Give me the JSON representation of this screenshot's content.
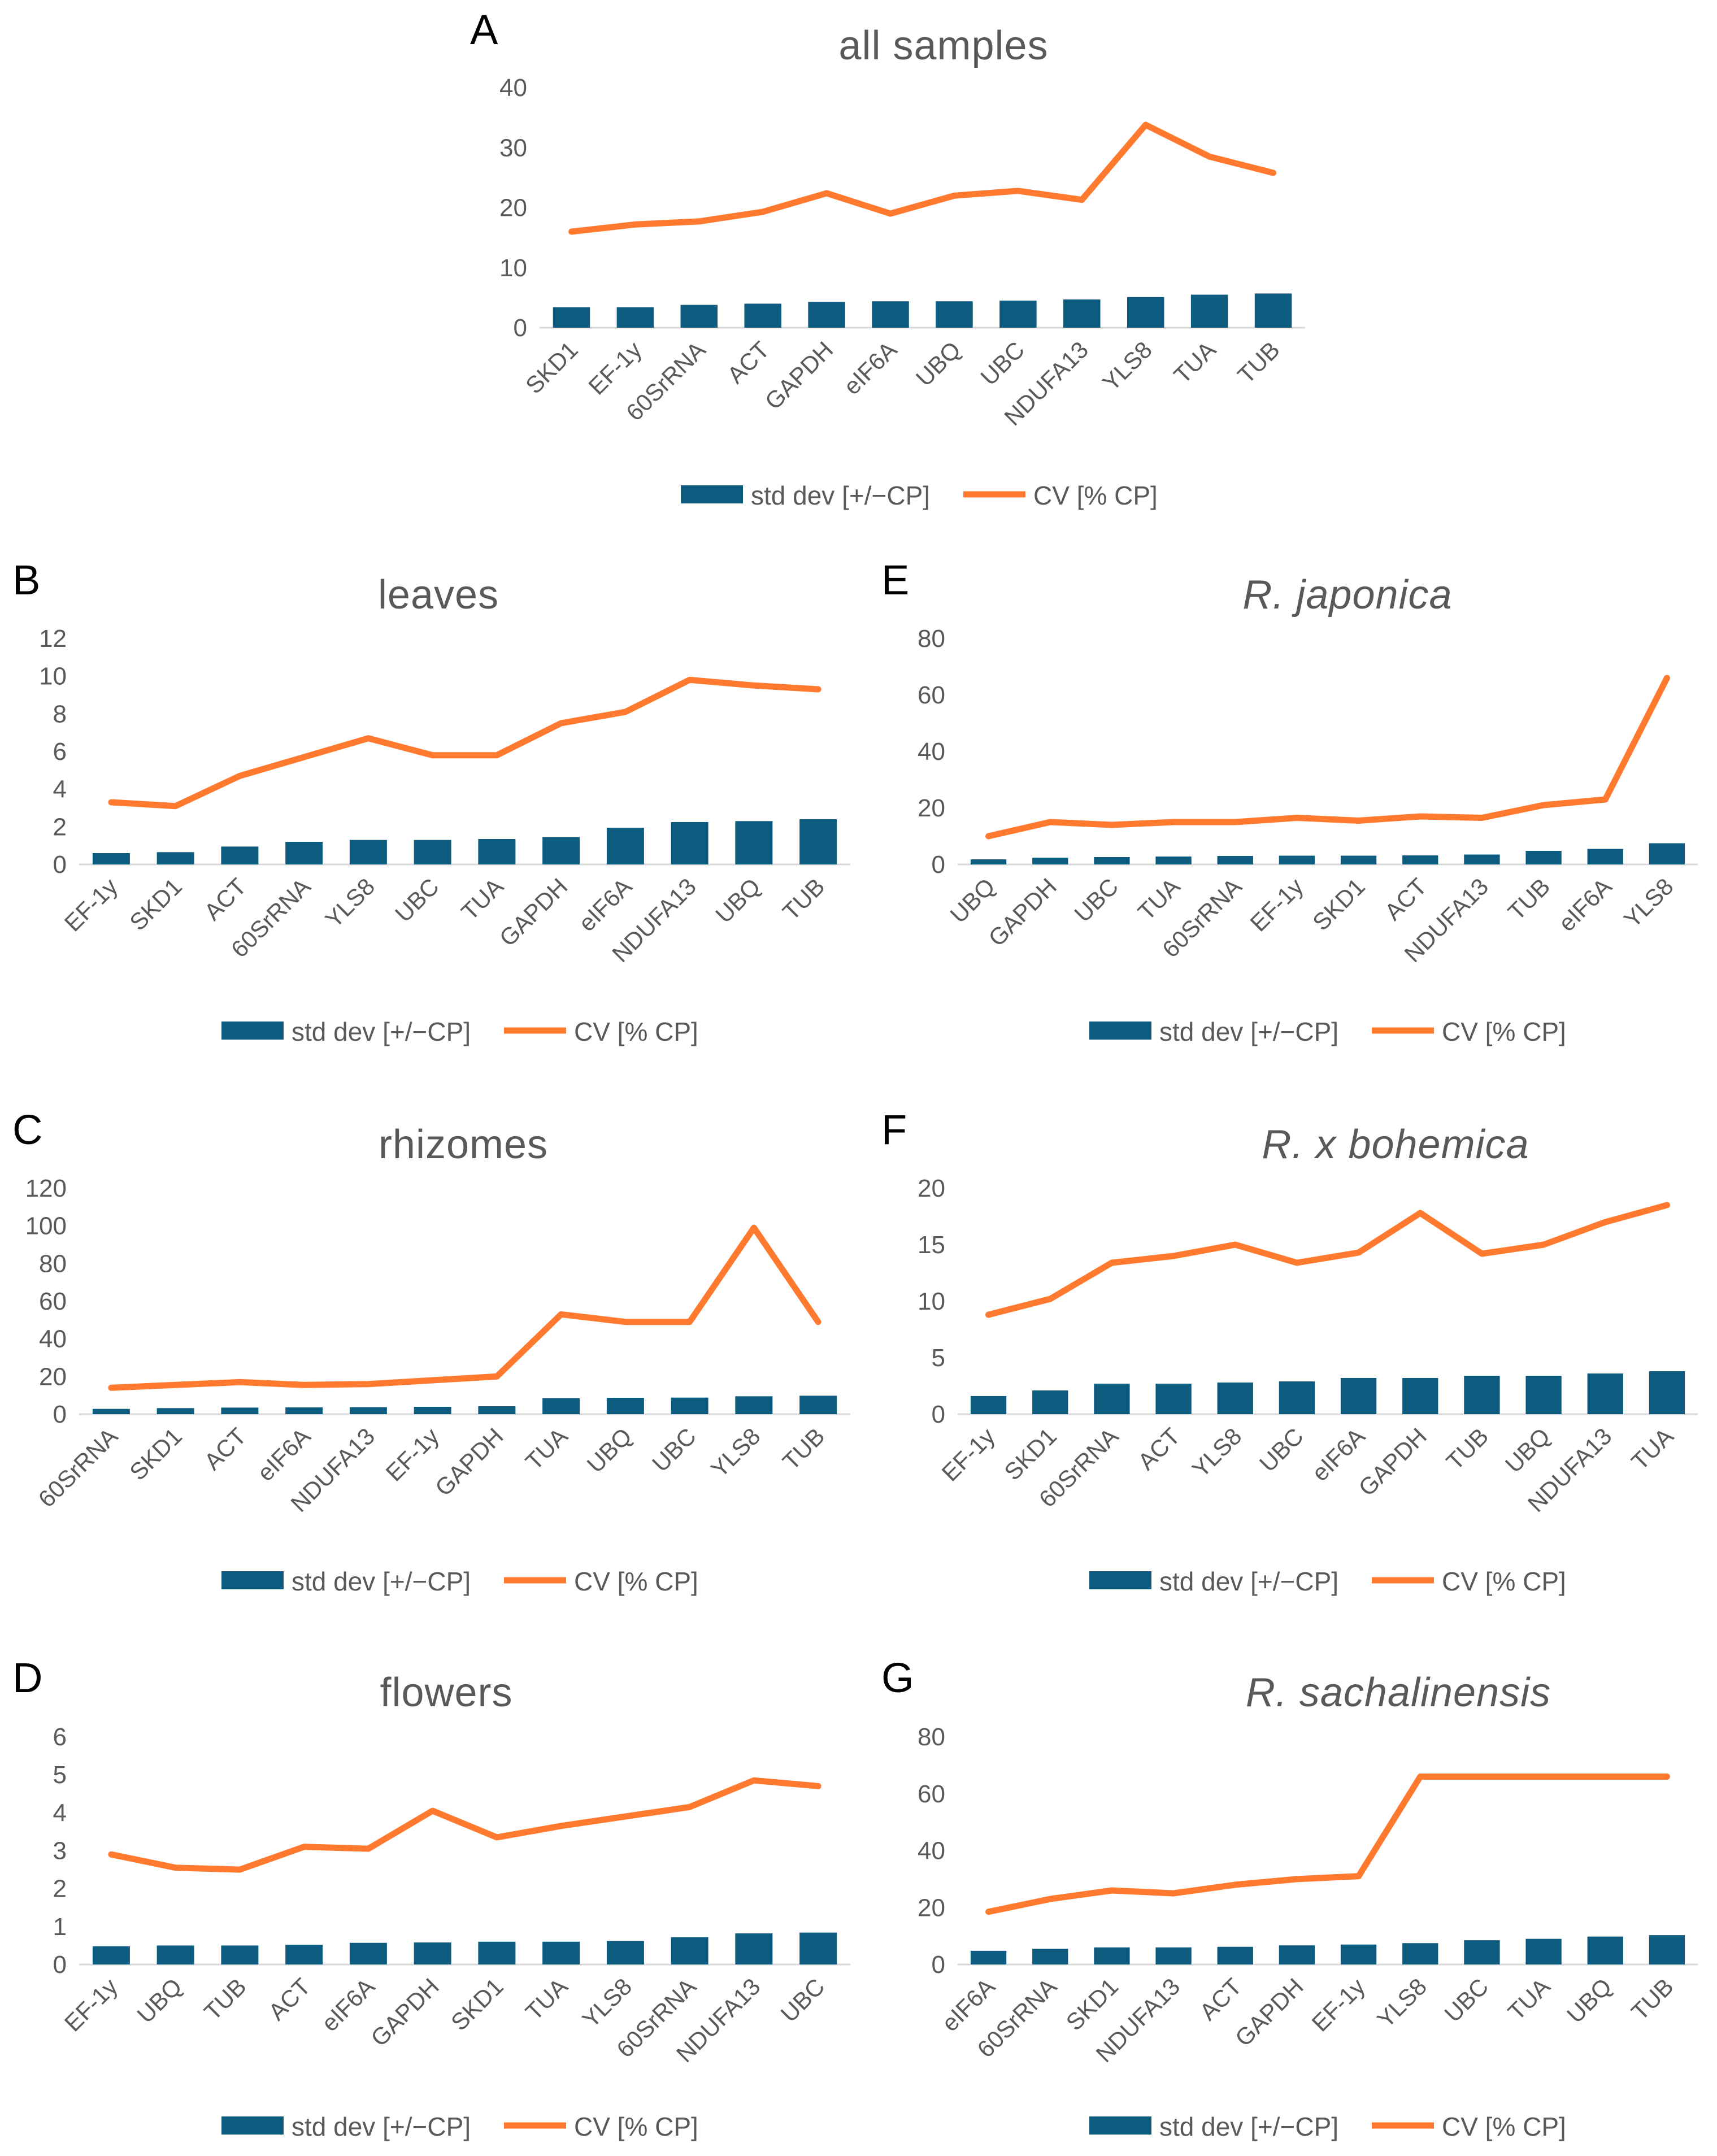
{
  "colors": {
    "bar": "#0e5b80",
    "line": "#ff7a2f",
    "text": "#595959",
    "axis": "#d9d9d9"
  },
  "legend": {
    "bar_label": "std dev [+/−CP]",
    "line_label": "CV [% CP]"
  },
  "chart_data": [
    {
      "id": "A",
      "letter": "A",
      "title": "all samples",
      "italic": false,
      "type": "bar+line",
      "ylim": [
        0,
        40
      ],
      "yticks": [
        0,
        10,
        20,
        30,
        40
      ],
      "categories": [
        "SKD1",
        "EF-1y",
        "60SrRNA",
        "ACT",
        "GAPDH",
        "eIF6A",
        "UBQ",
        "UBC",
        "NDUFA13",
        "YLS8",
        "TUA",
        "TUB"
      ],
      "series": [
        {
          "name": "std dev [+/−CP]",
          "kind": "bar",
          "values": [
            3.4,
            3.4,
            3.8,
            4.0,
            4.3,
            4.4,
            4.4,
            4.5,
            4.7,
            5.1,
            5.5,
            5.7
          ]
        },
        {
          "name": "CV [% CP]",
          "kind": "line",
          "values": [
            16,
            17.2,
            17.7,
            19.3,
            22.4,
            19,
            22,
            22.8,
            21.3,
            33.8,
            28.5,
            25.8
          ]
        }
      ]
    },
    {
      "id": "B",
      "letter": "B",
      "title": "leaves",
      "italic": false,
      "type": "bar+line",
      "ylim": [
        0,
        12
      ],
      "yticks": [
        0,
        2,
        4,
        6,
        8,
        10,
        12
      ],
      "categories": [
        "EF-1y",
        "SKD1",
        "ACT",
        "60SrRNA",
        "YLS8",
        "UBC",
        "TUA",
        "GAPDH",
        "eIF6A",
        "NDUFA13",
        "UBQ",
        "TUB"
      ],
      "series": [
        {
          "name": "std dev [+/−CP]",
          "kind": "bar",
          "values": [
            0.6,
            0.65,
            0.95,
            1.2,
            1.3,
            1.3,
            1.35,
            1.45,
            1.95,
            2.25,
            2.3,
            2.4
          ]
        },
        {
          "name": "CV [% CP]",
          "kind": "line",
          "values": [
            3.3,
            3.1,
            4.7,
            5.7,
            6.7,
            5.8,
            5.8,
            7.5,
            8.1,
            9.8,
            9.5,
            9.3
          ]
        }
      ]
    },
    {
      "id": "E",
      "letter": "E",
      "title": "R. japonica",
      "italic": true,
      "type": "bar+line",
      "ylim": [
        0,
        80
      ],
      "yticks": [
        0,
        20,
        40,
        60,
        80
      ],
      "categories": [
        "UBQ",
        "GAPDH",
        "UBC",
        "TUA",
        "60SrRNA",
        "EF-1y",
        "SKD1",
        "ACT",
        "NDUFA13",
        "TUB",
        "eIF6A",
        "YLS8"
      ],
      "series": [
        {
          "name": "std dev [+/−CP]",
          "kind": "bar",
          "values": [
            1.8,
            2.4,
            2.6,
            2.8,
            3.0,
            3.1,
            3.1,
            3.2,
            3.5,
            4.8,
            5.5,
            7.5
          ]
        },
        {
          "name": "CV [% CP]",
          "kind": "line",
          "values": [
            10,
            15,
            14,
            15,
            15,
            16.5,
            15.5,
            17,
            16.5,
            21,
            23,
            66
          ]
        }
      ]
    },
    {
      "id": "C",
      "letter": "C",
      "title": "rhizomes",
      "italic": false,
      "type": "bar+line",
      "ylim": [
        0,
        120
      ],
      "yticks": [
        0,
        20,
        40,
        60,
        80,
        100,
        120
      ],
      "categories": [
        "60SrRNA",
        "SKD1",
        "ACT",
        "eIF6A",
        "NDUFA13",
        "EF-1y",
        "GAPDH",
        "TUA",
        "UBQ",
        "UBC",
        "YLS8",
        "TUB"
      ],
      "series": [
        {
          "name": "std dev [+/−CP]",
          "kind": "bar",
          "values": [
            2.8,
            3.2,
            3.5,
            3.6,
            3.7,
            3.9,
            4.2,
            8.5,
            8.7,
            8.8,
            9.5,
            9.8
          ]
        },
        {
          "name": "CV [% CP]",
          "kind": "line",
          "values": [
            14,
            15.5,
            17,
            15.5,
            16,
            18,
            20,
            53,
            49,
            49,
            99,
            49
          ]
        }
      ]
    },
    {
      "id": "F",
      "letter": "F",
      "title": "R. x bohemica",
      "italic": true,
      "type": "bar+line",
      "ylim": [
        0,
        20
      ],
      "yticks": [
        0,
        5,
        10,
        15,
        20
      ],
      "categories": [
        "EF-1y",
        "SKD1",
        "60SrRNA",
        "ACT",
        "YLS8",
        "UBC",
        "eIF6A",
        "GAPDH",
        "TUB",
        "UBQ",
        "NDUFA13",
        "TUA"
      ],
      "series": [
        {
          "name": "std dev [+/−CP]",
          "kind": "bar",
          "values": [
            1.6,
            2.1,
            2.7,
            2.7,
            2.8,
            2.9,
            3.2,
            3.2,
            3.4,
            3.4,
            3.6,
            3.8
          ]
        },
        {
          "name": "CV [% CP]",
          "kind": "line",
          "values": [
            8.8,
            10.2,
            13.4,
            14,
            15,
            13.4,
            14.3,
            17.8,
            14.2,
            15,
            17,
            18.5
          ]
        }
      ]
    },
    {
      "id": "D",
      "letter": "D",
      "title": "flowers",
      "italic": false,
      "type": "bar+line",
      "ylim": [
        0,
        6
      ],
      "yticks": [
        0,
        1,
        2,
        3,
        4,
        5,
        6
      ],
      "categories": [
        "EF-1y",
        "UBQ",
        "TUB",
        "ACT",
        "eIF6A",
        "GAPDH",
        "SKD1",
        "TUA",
        "YLS8",
        "60SrRNA",
        "NDUFA13",
        "UBC"
      ],
      "series": [
        {
          "name": "std dev [+/−CP]",
          "kind": "bar",
          "values": [
            0.48,
            0.5,
            0.5,
            0.52,
            0.57,
            0.58,
            0.6,
            0.6,
            0.62,
            0.72,
            0.82,
            0.84
          ]
        },
        {
          "name": "CV [% CP]",
          "kind": "line",
          "values": [
            2.9,
            2.55,
            2.5,
            3.1,
            3.05,
            4.05,
            3.35,
            3.65,
            3.9,
            4.15,
            4.85,
            4.7
          ]
        }
      ]
    },
    {
      "id": "G",
      "letter": "G",
      "title": "R. sachalinensis",
      "italic": true,
      "type": "bar+line",
      "ylim": [
        0,
        80
      ],
      "yticks": [
        0,
        20,
        40,
        60,
        80
      ],
      "categories": [
        "eIF6A",
        "60SrRNA",
        "SKD1",
        "NDUFA13",
        "ACT",
        "GAPDH",
        "EF-1y",
        "YLS8",
        "UBC",
        "TUA",
        "UBQ",
        "TUB"
      ],
      "series": [
        {
          "name": "std dev [+/−CP]",
          "kind": "bar",
          "values": [
            4.8,
            5.5,
            6.0,
            6.0,
            6.2,
            6.7,
            7.0,
            7.5,
            8.5,
            9.0,
            9.8,
            10.3
          ]
        },
        {
          "name": "CV [% CP]",
          "kind": "line",
          "values": [
            18.5,
            23,
            26,
            25,
            28,
            30,
            31,
            66,
            66,
            66,
            66,
            66
          ]
        }
      ]
    }
  ]
}
